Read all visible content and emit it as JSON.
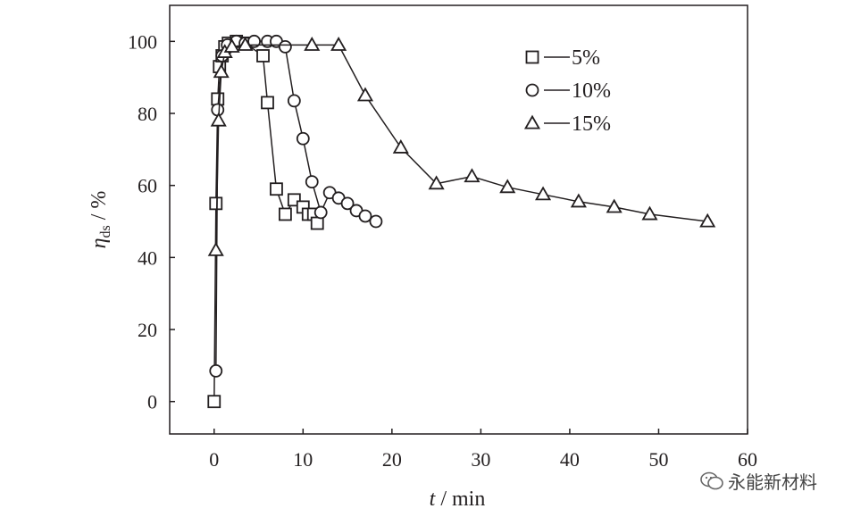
{
  "chart_data": {
    "type": "line",
    "xlabel": {
      "var": "t",
      "unit": "min"
    },
    "ylabel": {
      "var": "η",
      "sub": "ds",
      "unit": "%"
    },
    "xlim": [
      -5,
      60
    ],
    "ylim": [
      -9,
      110
    ],
    "xticks": [
      0,
      10,
      20,
      30,
      40,
      50,
      60
    ],
    "yticks": [
      0,
      20,
      40,
      60,
      80,
      100
    ],
    "legend_position": "top-right",
    "grid": false,
    "series": [
      {
        "name": "5%",
        "marker": "square",
        "points": [
          [
            0,
            0
          ],
          [
            0.2,
            55
          ],
          [
            0.4,
            84
          ],
          [
            0.6,
            93
          ],
          [
            0.9,
            96
          ],
          [
            1.2,
            98.5
          ],
          [
            1.6,
            99.5
          ],
          [
            2.5,
            100
          ],
          [
            3.5,
            99.5
          ],
          [
            5.5,
            96
          ],
          [
            6,
            83
          ],
          [
            7,
            59
          ],
          [
            8,
            52
          ],
          [
            9,
            56
          ],
          [
            10,
            54
          ],
          [
            10.6,
            52
          ],
          [
            11.2,
            52
          ],
          [
            11.6,
            49.5
          ]
        ]
      },
      {
        "name": "10%",
        "marker": "circle",
        "points": [
          [
            0.2,
            8.5
          ],
          [
            0.4,
            81
          ],
          [
            0.9,
            96
          ],
          [
            1.5,
            99
          ],
          [
            2.5,
            100
          ],
          [
            3.5,
            99.5
          ],
          [
            4.5,
            100
          ],
          [
            6,
            100
          ],
          [
            7,
            100
          ],
          [
            8,
            98.5
          ],
          [
            9,
            83.5
          ],
          [
            10,
            73
          ],
          [
            11,
            61
          ],
          [
            12,
            52.5
          ],
          [
            13,
            58
          ],
          [
            14,
            56.5
          ],
          [
            15,
            55
          ],
          [
            16,
            53
          ],
          [
            17,
            51.5
          ],
          [
            18.2,
            50
          ]
        ]
      },
      {
        "name": "15%",
        "marker": "triangle",
        "points": [
          [
            0.2,
            42
          ],
          [
            0.5,
            78
          ],
          [
            0.8,
            91.5
          ],
          [
            1.2,
            97
          ],
          [
            2,
            98.5
          ],
          [
            3.5,
            99
          ],
          [
            11,
            99
          ],
          [
            14,
            99
          ],
          [
            17,
            85
          ],
          [
            21,
            70.5
          ],
          [
            25,
            60.5
          ],
          [
            29,
            62.5
          ],
          [
            33,
            59.5
          ],
          [
            37,
            57.5
          ],
          [
            41,
            55.5
          ],
          [
            45,
            54
          ],
          [
            49,
            52
          ],
          [
            55.5,
            50
          ]
        ]
      }
    ]
  },
  "watermark": "永能新材料",
  "watermark_icon": "wechat-icon"
}
